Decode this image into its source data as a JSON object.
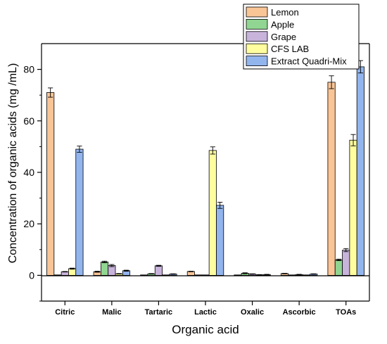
{
  "chart_data": {
    "type": "bar",
    "title": "",
    "xlabel": "Organic acid",
    "ylabel": "Concentration of organic acids (mg /mL)",
    "categories": [
      "Citric",
      "Malic",
      "Tartaric",
      "Lactic",
      "Oxalic",
      "Ascorbic",
      "TOAs"
    ],
    "ylim": [
      -10,
      90
    ],
    "yticks": [
      0,
      20,
      40,
      60,
      80
    ],
    "grid": false,
    "legend_position": "top-right",
    "series": [
      {
        "name": "Lemon",
        "color": "#F9C597",
        "values": [
          71.0,
          1.4,
          0.0,
          1.5,
          0.0,
          0.7,
          75.0
        ],
        "errors": [
          1.8,
          0.2,
          0.0,
          0.1,
          0.0,
          0.1,
          2.5
        ]
      },
      {
        "name": "Apple",
        "color": "#90D591",
        "values": [
          0.0,
          5.2,
          0.6,
          0.0,
          0.8,
          0.0,
          6.0
        ],
        "errors": [
          0.0,
          0.3,
          0.1,
          0.0,
          0.2,
          0.0,
          0.3
        ]
      },
      {
        "name": "Grape",
        "color": "#C8B3DB",
        "values": [
          1.4,
          3.8,
          3.7,
          0.0,
          0.5,
          0.3,
          9.8
        ],
        "errors": [
          0.1,
          0.4,
          0.2,
          0.0,
          0.1,
          0.1,
          0.6
        ]
      },
      {
        "name": "CFS LAB",
        "color": "#FFFD9E",
        "values": [
          2.6,
          0.6,
          0.0,
          48.5,
          0.2,
          0.0,
          52.5
        ],
        "errors": [
          0.2,
          0.1,
          0.0,
          1.4,
          0.1,
          0.0,
          2.2
        ]
      },
      {
        "name": "Extract Quadri-Mix",
        "color": "#92B5EE",
        "values": [
          49.0,
          1.8,
          0.5,
          27.2,
          0.3,
          0.5,
          81.0
        ],
        "errors": [
          1.2,
          0.2,
          0.1,
          1.2,
          0.1,
          0.1,
          2.4
        ]
      }
    ]
  }
}
